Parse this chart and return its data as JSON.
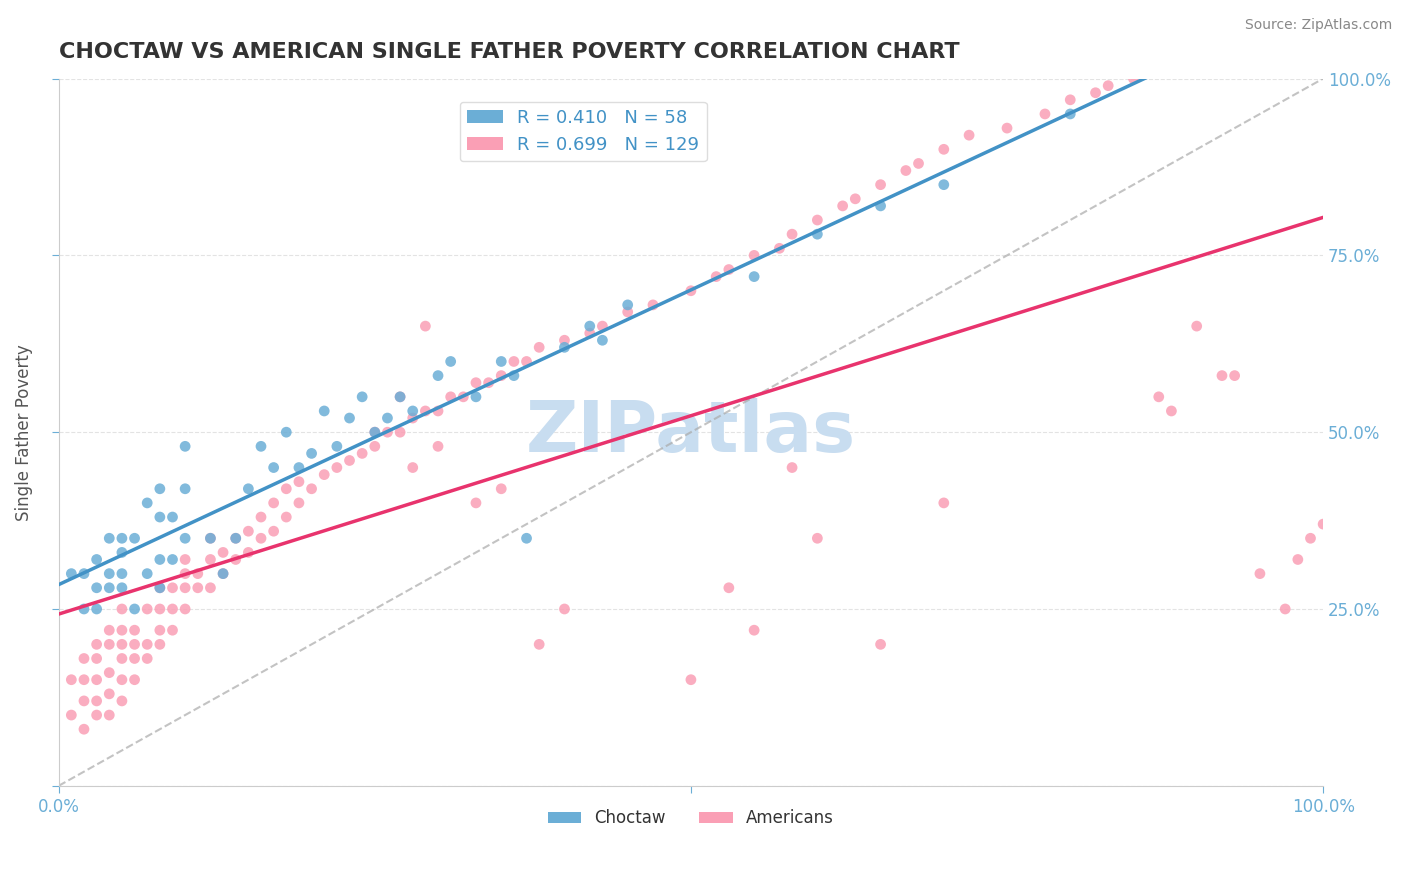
{
  "title": "CHOCTAW VS AMERICAN SINGLE FATHER POVERTY CORRELATION CHART",
  "source": "Source: ZipAtlas.com",
  "ylabel": "Single Father Poverty",
  "xlabel": "",
  "xlim": [
    0.0,
    1.0
  ],
  "ylim": [
    0.0,
    1.0
  ],
  "xticks": [
    0.0,
    0.25,
    0.5,
    0.75,
    1.0
  ],
  "yticks_right": [
    0.25,
    0.5,
    0.75,
    1.0
  ],
  "xtick_labels": [
    "0.0%",
    "",
    "",
    "",
    "100.0%"
  ],
  "ytick_labels_right": [
    "25.0%",
    "50.0%",
    "75.0%",
    "100.0%"
  ],
  "choctaw_R": 0.41,
  "choctaw_N": 58,
  "american_R": 0.699,
  "american_N": 129,
  "choctaw_color": "#6baed6",
  "american_color": "#fa9fb5",
  "choctaw_line_color": "#4292c6",
  "american_line_color": "#e8336d",
  "ref_line_color": "#aaaaaa",
  "legend_text_color": "#4292c6",
  "watermark_color": "#c8ddf0",
  "background_color": "#ffffff",
  "grid_color": "#dddddd",
  "title_color": "#333333",
  "axis_label_color": "#6baed6",
  "choctaw_x": [
    0.01,
    0.02,
    0.02,
    0.03,
    0.03,
    0.03,
    0.04,
    0.04,
    0.04,
    0.05,
    0.05,
    0.05,
    0.05,
    0.06,
    0.06,
    0.07,
    0.07,
    0.08,
    0.08,
    0.08,
    0.08,
    0.09,
    0.09,
    0.1,
    0.1,
    0.1,
    0.12,
    0.13,
    0.14,
    0.15,
    0.16,
    0.17,
    0.18,
    0.19,
    0.2,
    0.21,
    0.22,
    0.23,
    0.24,
    0.25,
    0.26,
    0.27,
    0.28,
    0.3,
    0.31,
    0.33,
    0.35,
    0.36,
    0.37,
    0.4,
    0.42,
    0.43,
    0.45,
    0.55,
    0.6,
    0.65,
    0.7,
    0.8
  ],
  "choctaw_y": [
    0.3,
    0.25,
    0.3,
    0.25,
    0.28,
    0.32,
    0.28,
    0.3,
    0.35,
    0.28,
    0.3,
    0.33,
    0.35,
    0.25,
    0.35,
    0.3,
    0.4,
    0.28,
    0.32,
    0.38,
    0.42,
    0.32,
    0.38,
    0.35,
    0.42,
    0.48,
    0.35,
    0.3,
    0.35,
    0.42,
    0.48,
    0.45,
    0.5,
    0.45,
    0.47,
    0.53,
    0.48,
    0.52,
    0.55,
    0.5,
    0.52,
    0.55,
    0.53,
    0.58,
    0.6,
    0.55,
    0.6,
    0.58,
    0.35,
    0.62,
    0.65,
    0.63,
    0.68,
    0.72,
    0.78,
    0.82,
    0.85,
    0.95
  ],
  "american_x": [
    0.01,
    0.01,
    0.02,
    0.02,
    0.02,
    0.02,
    0.03,
    0.03,
    0.03,
    0.03,
    0.03,
    0.04,
    0.04,
    0.04,
    0.04,
    0.04,
    0.05,
    0.05,
    0.05,
    0.05,
    0.05,
    0.05,
    0.06,
    0.06,
    0.06,
    0.06,
    0.07,
    0.07,
    0.07,
    0.08,
    0.08,
    0.08,
    0.08,
    0.09,
    0.09,
    0.09,
    0.1,
    0.1,
    0.1,
    0.1,
    0.11,
    0.11,
    0.12,
    0.12,
    0.12,
    0.13,
    0.13,
    0.14,
    0.14,
    0.15,
    0.15,
    0.16,
    0.16,
    0.17,
    0.17,
    0.18,
    0.18,
    0.19,
    0.19,
    0.2,
    0.21,
    0.22,
    0.23,
    0.24,
    0.25,
    0.26,
    0.27,
    0.28,
    0.29,
    0.3,
    0.31,
    0.32,
    0.33,
    0.34,
    0.35,
    0.36,
    0.37,
    0.38,
    0.4,
    0.42,
    0.43,
    0.45,
    0.47,
    0.5,
    0.52,
    0.53,
    0.55,
    0.57,
    0.58,
    0.6,
    0.62,
    0.63,
    0.65,
    0.67,
    0.68,
    0.7,
    0.72,
    0.75,
    0.78,
    0.8,
    0.82,
    0.83,
    0.85,
    0.87,
    0.88,
    0.9,
    0.92,
    0.93,
    0.95,
    0.97,
    0.98,
    0.99,
    1.0,
    0.5,
    0.55,
    0.6,
    0.65,
    0.7,
    0.53,
    0.58,
    0.33,
    0.35,
    0.38,
    0.4,
    0.3,
    0.28,
    0.25,
    0.27,
    0.29
  ],
  "american_y": [
    0.1,
    0.15,
    0.08,
    0.12,
    0.15,
    0.18,
    0.1,
    0.12,
    0.15,
    0.18,
    0.2,
    0.1,
    0.13,
    0.16,
    0.2,
    0.22,
    0.12,
    0.15,
    0.18,
    0.2,
    0.22,
    0.25,
    0.15,
    0.18,
    0.2,
    0.22,
    0.18,
    0.2,
    0.25,
    0.2,
    0.22,
    0.25,
    0.28,
    0.22,
    0.25,
    0.28,
    0.25,
    0.28,
    0.3,
    0.32,
    0.28,
    0.3,
    0.28,
    0.32,
    0.35,
    0.3,
    0.33,
    0.32,
    0.35,
    0.33,
    0.36,
    0.35,
    0.38,
    0.36,
    0.4,
    0.38,
    0.42,
    0.4,
    0.43,
    0.42,
    0.44,
    0.45,
    0.46,
    0.47,
    0.48,
    0.5,
    0.5,
    0.52,
    0.53,
    0.53,
    0.55,
    0.55,
    0.57,
    0.57,
    0.58,
    0.6,
    0.6,
    0.62,
    0.63,
    0.64,
    0.65,
    0.67,
    0.68,
    0.7,
    0.72,
    0.73,
    0.75,
    0.76,
    0.78,
    0.8,
    0.82,
    0.83,
    0.85,
    0.87,
    0.88,
    0.9,
    0.92,
    0.93,
    0.95,
    0.97,
    0.98,
    0.99,
    1.0,
    0.55,
    0.53,
    0.65,
    0.58,
    0.58,
    0.3,
    0.25,
    0.32,
    0.35,
    0.37,
    0.15,
    0.22,
    0.35,
    0.2,
    0.4,
    0.28,
    0.45,
    0.4,
    0.42,
    0.2,
    0.25,
    0.48,
    0.45,
    0.5,
    0.55,
    0.65
  ]
}
